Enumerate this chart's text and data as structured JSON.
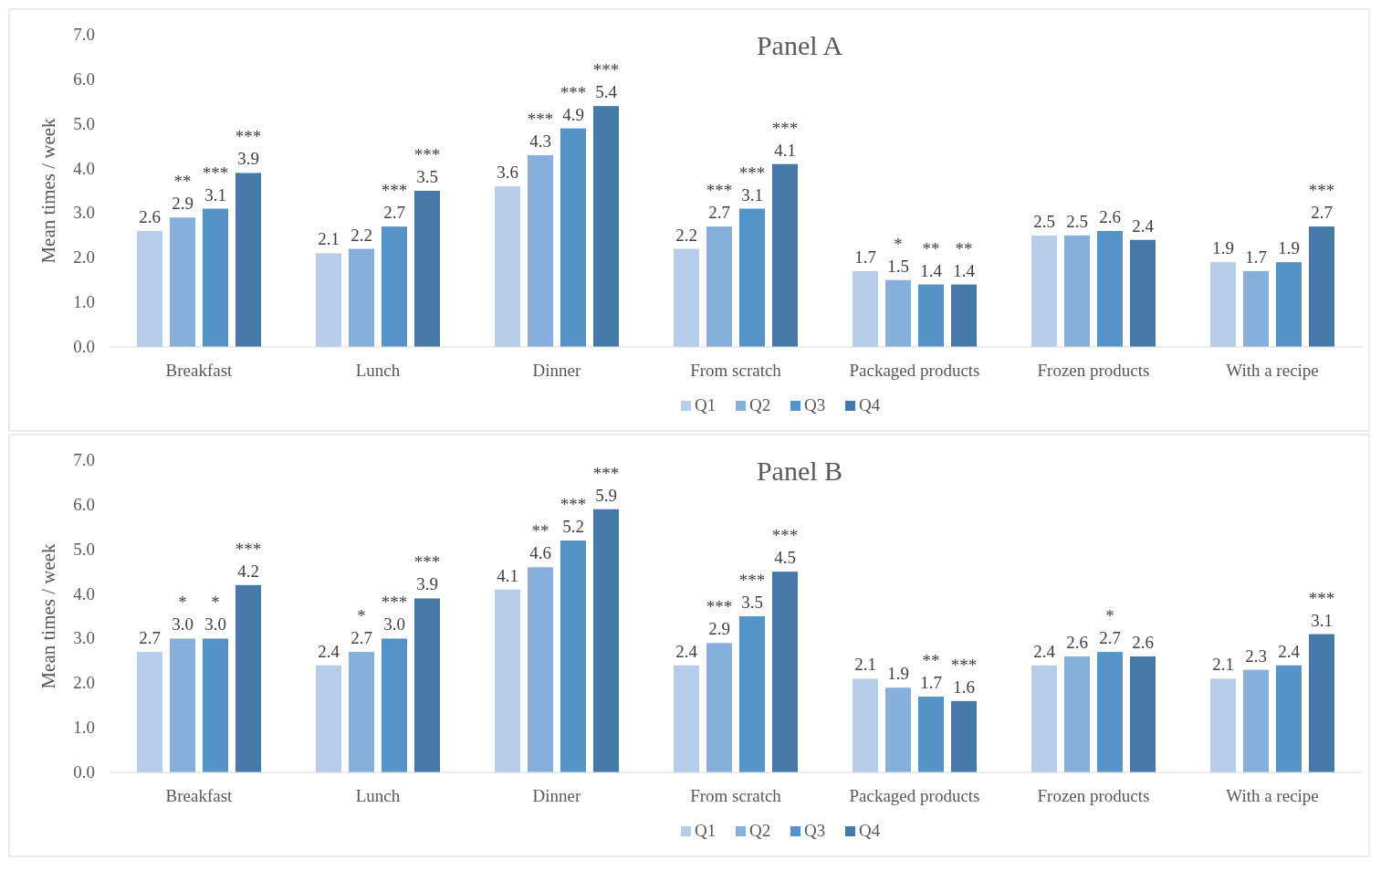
{
  "chart_data": [
    {
      "type": "bar",
      "title": "Panel A",
      "ylabel": "Mean times / week",
      "categories": [
        "Breakfast",
        "Lunch",
        "Dinner",
        "From scratch",
        "Packaged products",
        "Frozen products",
        "With a recipe"
      ],
      "series": [
        {
          "name": "Q1",
          "color": "#b7cde9",
          "values": [
            2.6,
            2.1,
            3.6,
            2.2,
            1.7,
            2.5,
            1.9
          ],
          "value_labels": [
            "2.6",
            "2.1",
            "3.6",
            "2.2",
            "1.7",
            "2.5",
            "1.9"
          ]
        },
        {
          "name": "Q2",
          "color": "#86afdc",
          "values": [
            2.9,
            2.2,
            4.3,
            2.7,
            1.5,
            2.5,
            1.7
          ],
          "value_labels": [
            "**\n2.9",
            "2.2",
            "***\n4.3",
            "***\n2.7",
            "*\n1.5",
            "2.5",
            "1.7"
          ]
        },
        {
          "name": "Q3",
          "color": "#5593c9",
          "values": [
            3.1,
            2.7,
            4.9,
            3.1,
            1.4,
            2.6,
            1.9
          ],
          "value_labels": [
            "***\n3.1",
            "***\n2.7",
            "***\n4.9",
            "***\n3.1",
            "**\n1.4",
            "2.6",
            "1.9"
          ]
        },
        {
          "name": "Q4",
          "color": "#4679a8",
          "values": [
            3.9,
            3.5,
            5.4,
            4.1,
            1.4,
            2.4,
            2.7
          ],
          "value_labels": [
            "***\n3.9",
            "***\n3.5",
            "***\n5.4",
            "***\n4.1",
            "**\n1.4",
            "2.4",
            "***\n2.7"
          ]
        }
      ],
      "ylim": [
        0,
        7
      ],
      "yticks": [
        {
          "value": 0,
          "label": "0.0"
        },
        {
          "value": 1,
          "label": "1.0"
        },
        {
          "value": 2,
          "label": "2.0"
        },
        {
          "value": 3,
          "label": "3.0"
        },
        {
          "value": 4,
          "label": "4.0"
        },
        {
          "value": 5,
          "label": "5.0"
        },
        {
          "value": 6,
          "label": "6.0"
        },
        {
          "value": 7,
          "label": "7.0"
        }
      ],
      "legend": "bottom"
    },
    {
      "type": "bar",
      "title": "Panel B",
      "ylabel": "Mean times / week",
      "categories": [
        "Breakfast",
        "Lunch",
        "Dinner",
        "From scratch",
        "Packaged products",
        "Frozen products",
        "With a recipe"
      ],
      "series": [
        {
          "name": "Q1",
          "color": "#b7cde9",
          "values": [
            2.7,
            2.4,
            4.1,
            2.4,
            2.1,
            2.4,
            2.1
          ],
          "value_labels": [
            "2.7",
            "2.4",
            "4.1",
            "2.4",
            "2.1",
            "2.4",
            "2.1"
          ]
        },
        {
          "name": "Q2",
          "color": "#86afdc",
          "values": [
            3.0,
            2.7,
            4.6,
            2.9,
            1.9,
            2.6,
            2.3
          ],
          "value_labels": [
            "*\n3.0",
            "*\n2.7",
            "**\n4.6",
            "***\n2.9",
            "1.9",
            "2.6",
            "2.3"
          ]
        },
        {
          "name": "Q3",
          "color": "#5593c9",
          "values": [
            3.0,
            3.0,
            5.2,
            3.5,
            1.7,
            2.7,
            2.4
          ],
          "value_labels": [
            "*\n3.0",
            "***\n3.0",
            "***\n5.2",
            "***\n3.5",
            "**\n1.7",
            "*\n2.7",
            "2.4"
          ]
        },
        {
          "name": "Q4",
          "color": "#4679a8",
          "values": [
            4.2,
            3.9,
            5.9,
            4.5,
            1.6,
            2.6,
            3.1
          ],
          "value_labels": [
            "***\n4.2",
            "***\n3.9",
            "***\n5.9",
            "***\n4.5",
            "***\n1.6",
            "2.6",
            "***\n3.1"
          ]
        }
      ],
      "ylim": [
        0,
        7
      ],
      "yticks": [
        {
          "value": 0,
          "label": "0.0"
        },
        {
          "value": 1,
          "label": "1.0"
        },
        {
          "value": 2,
          "label": "2.0"
        },
        {
          "value": 3,
          "label": "3.0"
        },
        {
          "value": 4,
          "label": "4.0"
        },
        {
          "value": 5,
          "label": "5.0"
        },
        {
          "value": 6,
          "label": "6.0"
        },
        {
          "value": 7,
          "label": "7.0"
        }
      ],
      "legend": "bottom"
    }
  ]
}
